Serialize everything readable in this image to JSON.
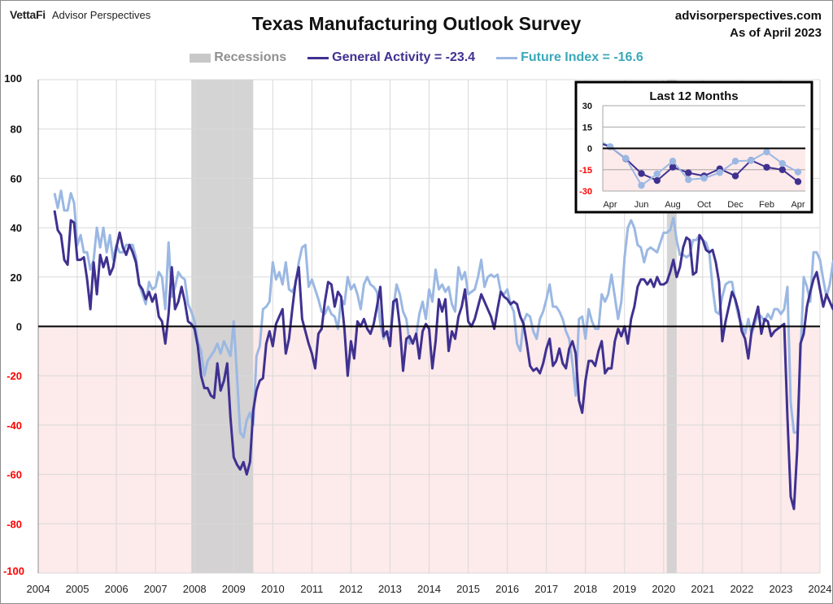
{
  "header": {
    "brand_logo": "VettaFi",
    "brand_name": "Advisor Perspectives",
    "title": "Texas Manufacturing Outlook Survey",
    "site": "advisorperspectives.com",
    "as_of": "As of April 2023"
  },
  "legend": {
    "recessions": "Recessions",
    "general": "General Activity = -23.4",
    "future": "Future Index = -16.6"
  },
  "colors": {
    "general": "#3f3190",
    "future": "#9bb8e3",
    "future_legend_text": "#3aa8b8",
    "recession": "#cfcfcf",
    "negative_fill": "#fdeaea",
    "negative_tick": "#ff0000"
  },
  "chart_data": [
    {
      "type": "line",
      "title": "Texas Manufacturing Outlook Survey",
      "xlabel": "",
      "ylabel": "",
      "xlim": [
        2004,
        2024
      ],
      "ylim": [
        -100,
        100
      ],
      "x_ticks": [
        "2004",
        "2005",
        "2006",
        "2007",
        "2008",
        "2009",
        "2010",
        "2011",
        "2012",
        "2013",
        "2014",
        "2015",
        "2016",
        "2017",
        "2018",
        "2019",
        "2020",
        "2021",
        "2022",
        "2023",
        "2024"
      ],
      "y_ticks": [
        100,
        80,
        60,
        40,
        20,
        0,
        -20,
        -40,
        -60,
        -80,
        -100
      ],
      "grid": true,
      "legend_position": "top-center",
      "start": 2004.417,
      "step_years": 0.0833333,
      "recessions": [
        [
          2007.917,
          2009.5
        ],
        [
          2020.083,
          2020.333
        ]
      ],
      "series": [
        {
          "name": "General Activity",
          "final_value": -23.4,
          "values": [
            47,
            39,
            37,
            27,
            25,
            43,
            42,
            27,
            27,
            28,
            19,
            7,
            26,
            13,
            29,
            24,
            28,
            21,
            24,
            32,
            38,
            32,
            29,
            33,
            30,
            26,
            17,
            15,
            11,
            14,
            10,
            13,
            4,
            2,
            -7,
            5,
            24,
            7,
            10,
            16,
            10,
            2,
            1,
            -1,
            -8,
            -20,
            -25,
            -25,
            -28,
            -29,
            -15,
            -26,
            -22,
            -15,
            -37,
            -53,
            -56,
            -58,
            -55,
            -60,
            -55,
            -34,
            -26,
            -22,
            -21,
            -7,
            -2,
            -8,
            1,
            4,
            7,
            -11,
            -5,
            7,
            18,
            24,
            3,
            -2,
            -7,
            -11,
            -17,
            -3,
            -1,
            10,
            18,
            17,
            8,
            14,
            12,
            -1,
            -20,
            -6,
            -13,
            2,
            0,
            3,
            -1,
            -3,
            1,
            8,
            16,
            -4,
            -2,
            -8,
            10,
            11,
            0,
            -18,
            -5,
            -4,
            -7,
            -3,
            -13,
            -2,
            1,
            -1,
            -17,
            -6,
            11,
            6,
            11,
            -10,
            -2,
            -5,
            4,
            8,
            15,
            2,
            0,
            3,
            8,
            13,
            10,
            7,
            4,
            -1,
            7,
            14,
            12,
            11,
            9,
            10,
            9,
            4,
            1,
            -7,
            -16,
            -18,
            -17,
            -19,
            -15,
            -9,
            -5,
            -16,
            -14,
            -9,
            -15,
            -17,
            -9,
            -6,
            -11,
            -30,
            -35,
            -22,
            -14,
            -14,
            -16,
            -10,
            -6,
            -19,
            -17,
            -17,
            -6,
            -1,
            -4,
            0,
            -7,
            3,
            8,
            16,
            19,
            19,
            17,
            19,
            16,
            20,
            17,
            17,
            18,
            22,
            27,
            20,
            24,
            32,
            36,
            35,
            21,
            22,
            37,
            35,
            31,
            30,
            31,
            26,
            18,
            -6,
            2,
            8,
            14,
            11,
            6,
            -2,
            -5,
            -13,
            -2,
            3,
            8,
            -3,
            3,
            2,
            -4,
            -2,
            -1,
            0,
            1,
            -37,
            -69,
            -74,
            -50,
            -7,
            -3,
            8,
            14,
            19,
            22,
            15,
            8,
            13,
            10,
            7,
            14,
            22,
            30,
            35,
            37,
            35,
            30,
            17,
            10,
            15,
            7,
            10,
            8,
            2,
            1,
            -3,
            -14,
            -21,
            -17,
            -22,
            -11,
            -19,
            -18,
            -16,
            -22,
            -15,
            -8,
            -14,
            -9,
            -8,
            -18,
            -23
          ]
        },
        {
          "name": "Future Index",
          "final_value": -16.6,
          "values": [
            54,
            48,
            55,
            47,
            47,
            54,
            50,
            33,
            37,
            30,
            30,
            23,
            27,
            40,
            32,
            40,
            30,
            37,
            27,
            33,
            30,
            30,
            33,
            33,
            33,
            28,
            17,
            13,
            9,
            18,
            15,
            16,
            22,
            20,
            7,
            34,
            12,
            16,
            22,
            20,
            19,
            9,
            6,
            2,
            -6,
            -10,
            -20,
            -14,
            -12,
            -10,
            -7,
            -11,
            -6,
            -9,
            -12,
            2,
            -20,
            -43,
            -45,
            -38,
            -35,
            -40,
            -12,
            -8,
            7,
            8,
            10,
            26,
            19,
            22,
            17,
            26,
            15,
            14,
            17,
            26,
            32,
            33,
            16,
            19,
            15,
            11,
            6,
            5,
            8,
            5,
            4,
            -1,
            11,
            9,
            20,
            15,
            17,
            13,
            7,
            17,
            20,
            17,
            16,
            14,
            1,
            -5,
            -2,
            -3,
            7,
            17,
            13,
            6,
            3,
            -7,
            -6,
            -4,
            5,
            10,
            3,
            15,
            10,
            23,
            15,
            17,
            14,
            16,
            9,
            6,
            24,
            19,
            22,
            13,
            14,
            15,
            20,
            27,
            16,
            20,
            21,
            20,
            21,
            14,
            13,
            15,
            9,
            6,
            -7,
            -10,
            2,
            5,
            4,
            -2,
            -5,
            3,
            6,
            11,
            17,
            8,
            8,
            6,
            3,
            -2,
            -5,
            -15,
            -28,
            3,
            4,
            -5,
            7,
            2,
            -1,
            -1,
            13,
            10,
            13,
            21,
            12,
            3,
            10,
            28,
            40,
            43,
            40,
            33,
            32,
            26,
            31,
            32,
            31,
            30,
            34,
            38,
            38,
            39,
            44,
            35,
            29,
            29,
            28,
            29,
            35,
            35,
            37,
            35,
            34,
            30,
            16,
            6,
            5,
            12,
            17,
            18,
            18,
            10,
            4,
            1,
            -3,
            3,
            -3,
            1,
            5,
            4,
            2,
            5,
            3,
            7,
            7,
            5,
            7,
            16,
            -31,
            -43,
            -43,
            -12,
            20,
            16,
            10,
            30,
            30,
            27,
            19,
            12,
            17,
            26,
            28,
            35,
            38,
            38,
            38,
            25,
            19,
            21,
            22,
            29,
            19,
            30,
            18,
            20,
            10,
            0,
            -6,
            -15,
            -27,
            -19,
            -11,
            -22,
            -23,
            -20,
            -13,
            -14,
            -8,
            -9,
            -3,
            -12,
            -17
          ]
        }
      ]
    },
    {
      "type": "line",
      "title": "Last 12 Months",
      "xlabel": "",
      "ylabel": "",
      "ylim": [
        -30,
        30
      ],
      "y_ticks": [
        30,
        15,
        0,
        -15,
        -30
      ],
      "x_labels": [
        "Apr",
        "",
        "Jun",
        "",
        "Aug",
        "",
        "Oct",
        "",
        "Dec",
        "",
        "Feb",
        "",
        "Apr"
      ],
      "x_tick_labels": [
        "Apr",
        "Jun",
        "Aug",
        "Oct",
        "Dec",
        "Feb",
        "Apr"
      ],
      "grid": true,
      "series": [
        {
          "name": "General Activity",
          "values": [
            1.1,
            -7.3,
            -17.7,
            -22.6,
            -13.2,
            -17.2,
            -19.4,
            -14.4,
            -19.4,
            -8.4,
            -13.3,
            -15.0,
            -23.4
          ]
        },
        {
          "name": "Future Index",
          "values": [
            1.2,
            -7.0,
            -26.0,
            -18.0,
            -9.0,
            -22.0,
            -21.0,
            -17.0,
            -9.0,
            -8.5,
            -2.5,
            -10.6,
            -16.6
          ]
        }
      ]
    }
  ]
}
